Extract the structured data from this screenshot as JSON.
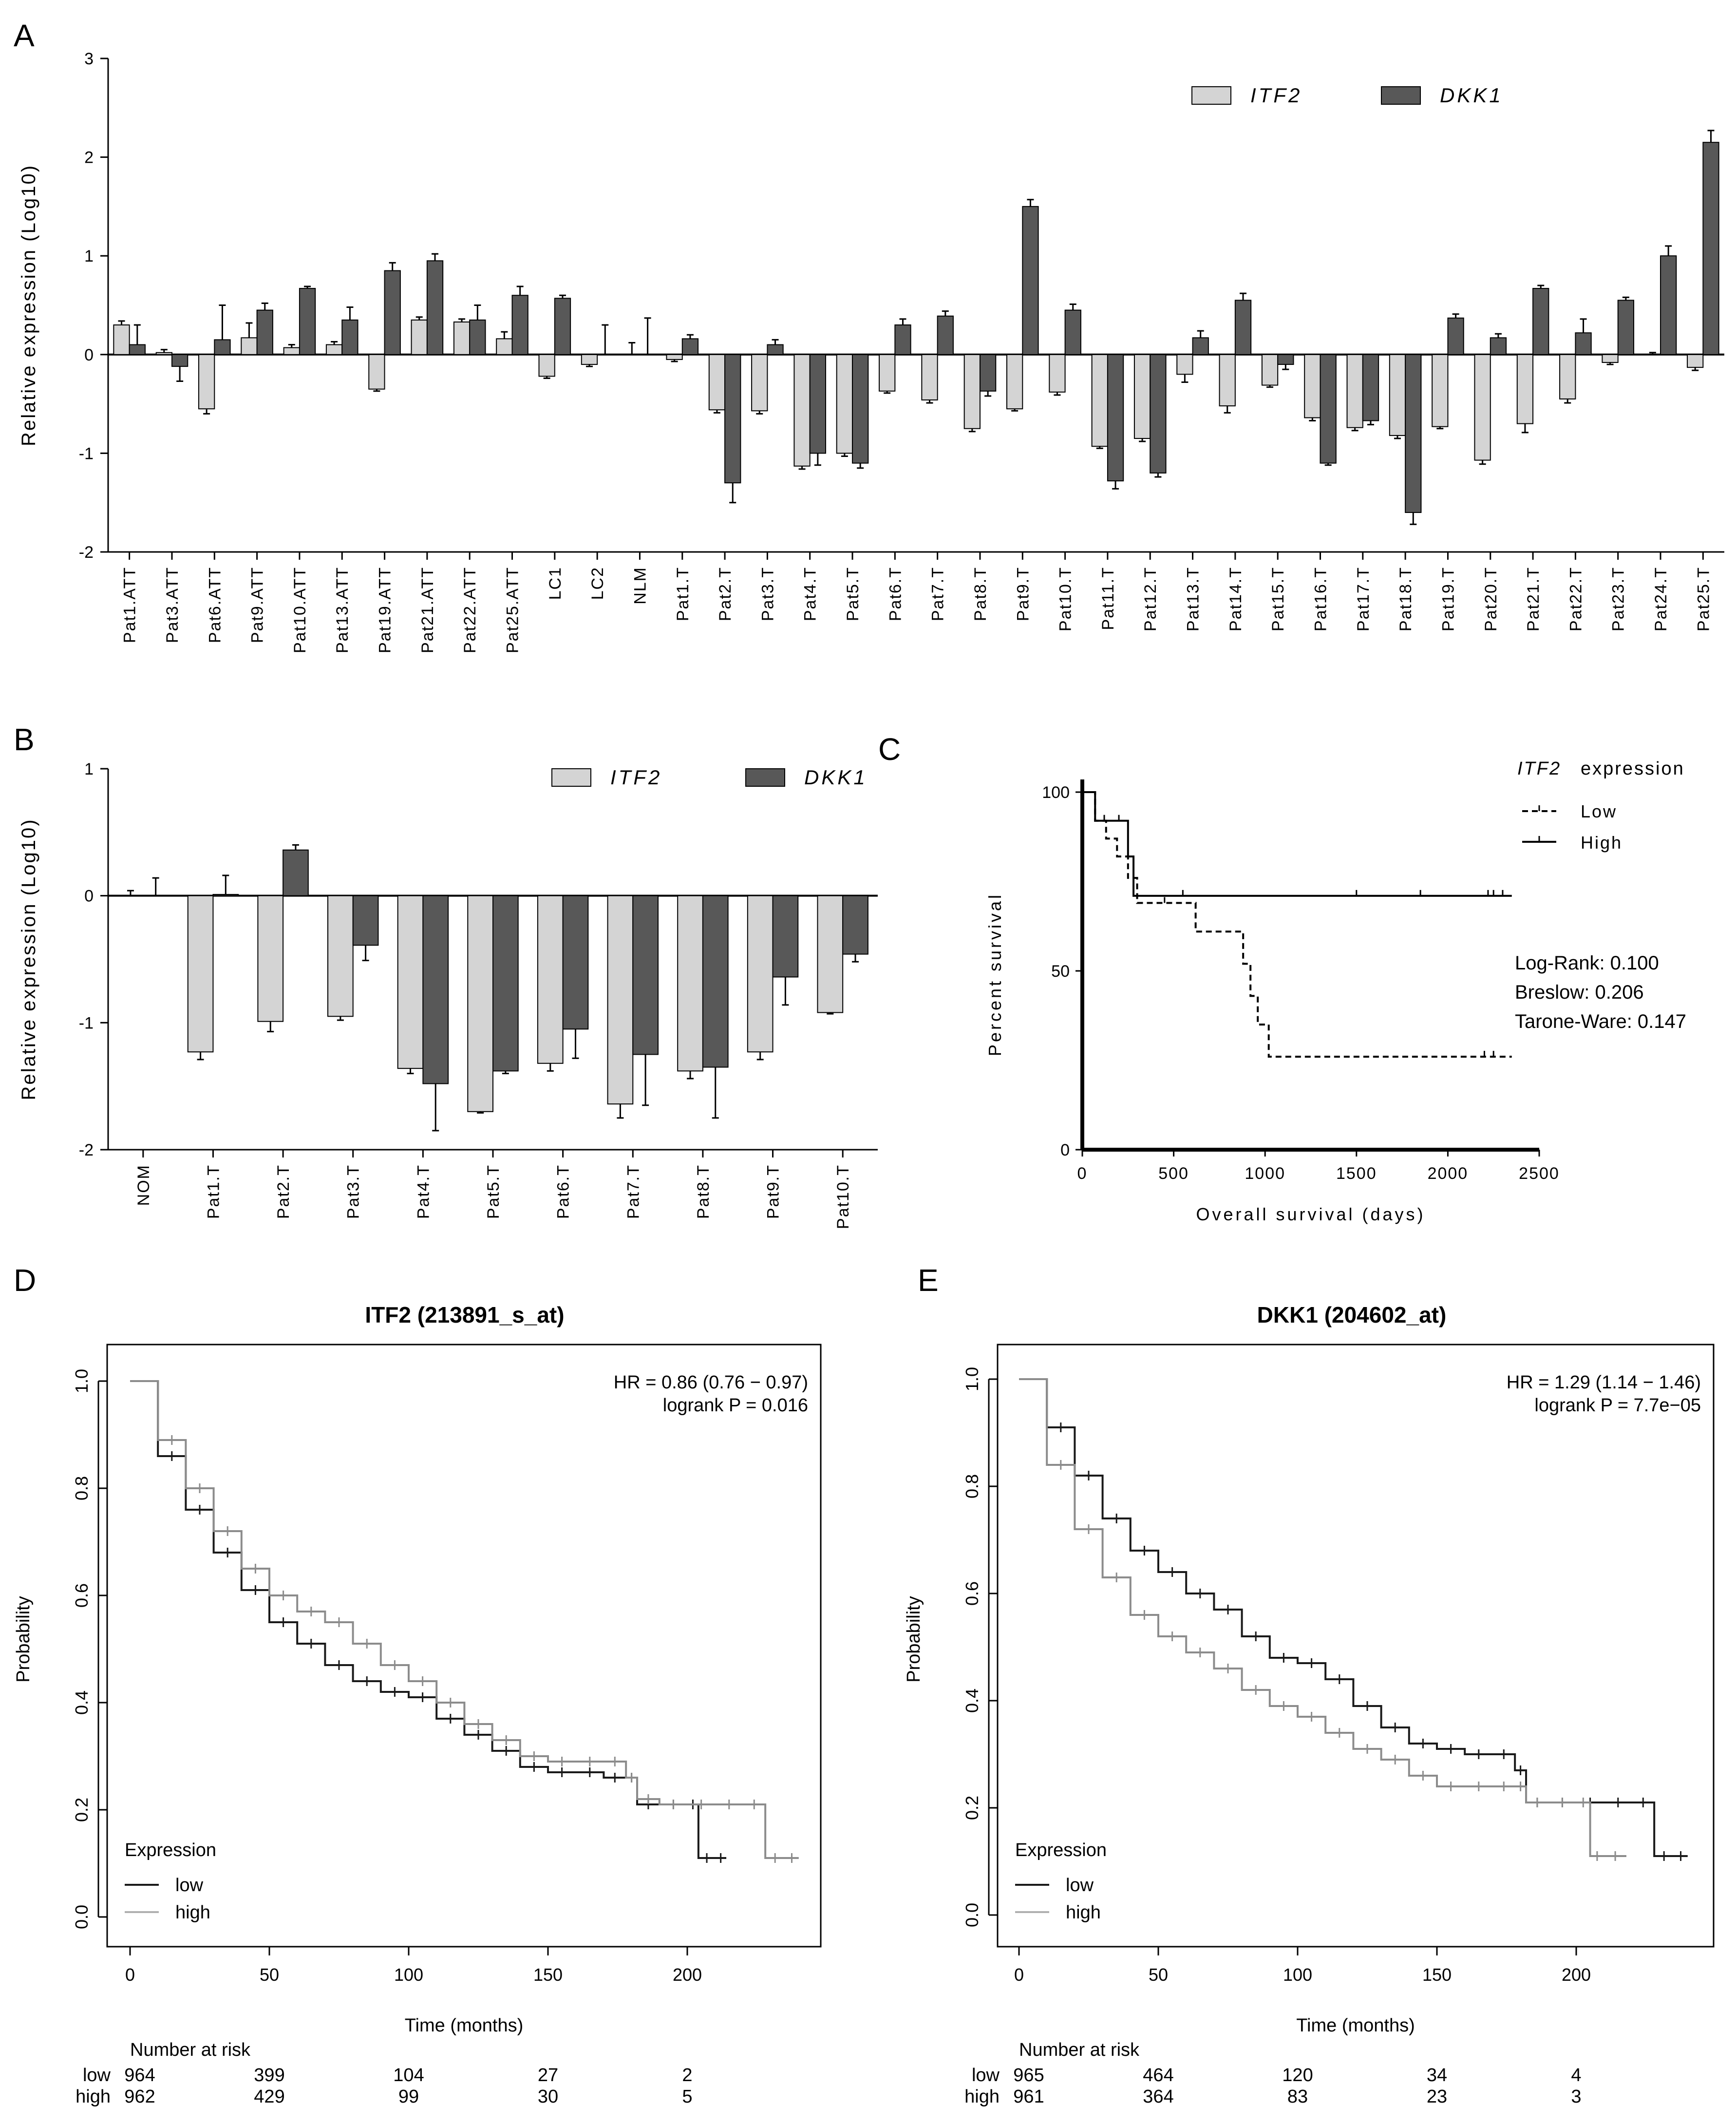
{
  "colors": {
    "itf2_bar": "#d4d4d4",
    "dkk1_bar": "#585858",
    "km_low": "#1a1a1a",
    "km_high": "#8c8c8c",
    "km_high_light": "#b0b0b0"
  },
  "panels": {
    "A": "A",
    "B": "B",
    "C": "C",
    "D": "D",
    "E": "E"
  },
  "chart_data": [
    {
      "id": "A",
      "type": "bar",
      "ylabel": "Relative expression (Log10)",
      "ylim": [
        -2,
        3
      ],
      "yticks": [
        "-2",
        "-1",
        "0",
        "1",
        "2",
        "3"
      ],
      "categories": [
        "Pat1.ATT",
        "Pat3.ATT",
        "Pat6.ATT",
        "Pat9.ATT",
        "Pat10.ATT",
        "Pat13.ATT",
        "Pat19.ATT",
        "Pat21.ATT",
        "Pat22.ATT",
        "Pat25.ATT",
        "LC1",
        "LC2",
        "NLM",
        "Pat1.T",
        "Pat2.T",
        "Pat3.T",
        "Pat4.T",
        "Pat5.T",
        "Pat6.T",
        "Pat7.T",
        "Pat8.T",
        "Pat9.T",
        "Pat10.T",
        "Pat11.T",
        "Pat12.T",
        "Pat13.T",
        "Pat14.T",
        "Pat15.T",
        "Pat16.T",
        "Pat17.T",
        "Pat18.T",
        "Pat19.T",
        "Pat20.T",
        "Pat21.T",
        "Pat22.T",
        "Pat23.T",
        "Pat24.T",
        "Pat25.T"
      ],
      "legend": [
        "ITF2",
        "DKK1"
      ],
      "series": [
        {
          "name": "ITF2",
          "values": [
            0.3,
            0.02,
            -0.55,
            0.17,
            0.07,
            0.1,
            -0.35,
            0.35,
            0.33,
            0.16,
            -0.22,
            -0.1,
            0.0,
            -0.05,
            -0.56,
            -0.57,
            -1.13,
            -1.0,
            -0.37,
            -0.46,
            -0.75,
            -0.55,
            -0.38,
            -0.93,
            -0.85,
            -0.2,
            -0.52,
            -0.31,
            -0.64,
            -0.74,
            -0.82,
            -0.73,
            -1.07,
            -0.7,
            -0.45,
            -0.08,
            0.0,
            -0.13
          ],
          "errors": [
            0.04,
            0.03,
            0.05,
            0.15,
            0.03,
            0.03,
            0.02,
            0.03,
            0.03,
            0.07,
            0.02,
            0.02,
            0.12,
            0.02,
            0.03,
            0.03,
            0.03,
            0.03,
            0.02,
            0.03,
            0.03,
            0.02,
            0.03,
            0.02,
            0.03,
            0.08,
            0.07,
            0.02,
            0.03,
            0.03,
            0.03,
            0.02,
            0.04,
            0.09,
            0.04,
            0.02,
            0.02,
            0.03
          ]
        },
        {
          "name": "DKK1",
          "values": [
            0.1,
            -0.12,
            0.15,
            0.45,
            0.67,
            0.35,
            0.85,
            0.95,
            0.35,
            0.6,
            0.57,
            0.0,
            0.0,
            0.16,
            -1.3,
            0.1,
            -1.0,
            -1.1,
            0.3,
            0.39,
            -0.37,
            1.5,
            0.45,
            -1.28,
            -1.2,
            0.17,
            0.55,
            -0.1,
            -1.1,
            -0.67,
            -1.6,
            0.37,
            0.17,
            0.67,
            0.22,
            0.55,
            1.0,
            2.15
          ],
          "errors": [
            0.2,
            0.15,
            0.35,
            0.07,
            0.02,
            0.13,
            0.08,
            0.07,
            0.15,
            0.09,
            0.03,
            0.3,
            0.37,
            0.04,
            0.2,
            0.05,
            0.12,
            0.05,
            0.06,
            0.05,
            0.05,
            0.07,
            0.06,
            0.08,
            0.04,
            0.07,
            0.07,
            0.05,
            0.02,
            0.04,
            0.12,
            0.04,
            0.04,
            0.03,
            0.14,
            0.03,
            0.1,
            0.12
          ]
        }
      ]
    },
    {
      "id": "B",
      "type": "bar",
      "ylabel": "Relative expression (Log10)",
      "ylim": [
        -2,
        1
      ],
      "yticks": [
        "-2",
        "-1",
        "0",
        "1"
      ],
      "categories": [
        "NOM",
        "Pat1.T",
        "Pat2.T",
        "Pat3.T",
        "Pat4.T",
        "Pat5.T",
        "Pat6.T",
        "Pat7.T",
        "Pat8.T",
        "Pat9.T",
        "Pat10.T"
      ],
      "legend": [
        "ITF2",
        "DKK1"
      ],
      "series": [
        {
          "name": "ITF2",
          "values": [
            0.0,
            -1.23,
            -0.99,
            -0.95,
            -1.36,
            -1.7,
            -1.32,
            -1.64,
            -1.38,
            -1.23,
            -0.92
          ],
          "errors": [
            0.04,
            0.06,
            0.08,
            0.03,
            0.04,
            0.01,
            0.06,
            0.11,
            0.06,
            0.06,
            0.01
          ]
        },
        {
          "name": "DKK1",
          "values": [
            0.0,
            0.01,
            0.36,
            -0.39,
            -1.48,
            -1.38,
            -1.05,
            -1.25,
            -1.35,
            -0.64,
            -0.46
          ],
          "errors": [
            0.14,
            0.15,
            0.04,
            0.12,
            0.37,
            0.02,
            0.23,
            0.4,
            0.4,
            0.22,
            0.06
          ]
        }
      ]
    },
    {
      "id": "C",
      "type": "line",
      "xlabel": "Overall survival (days)",
      "ylabel": "Percent survival",
      "xlim": [
        0,
        2500
      ],
      "ylim": [
        0,
        100
      ],
      "xticks": [
        "0",
        "500",
        "1000",
        "1500",
        "2000",
        "2500"
      ],
      "yticks": [
        "0",
        "50",
        "100"
      ],
      "legend_title_gene": "ITF2",
      "legend_title_rest": "expression",
      "legend": [
        "Low",
        "High"
      ],
      "stats": [
        "Log-Rank: 0.100",
        "Breslow: 0.206",
        "Tarone-Ware: 0.147"
      ],
      "series": [
        {
          "name": "Low",
          "x": [
            0,
            70,
            130,
            190,
            250,
            300,
            620,
            880,
            920,
            960,
            1020,
            1220,
            2350
          ],
          "y": [
            100,
            92,
            87,
            82,
            76,
            69,
            61,
            52,
            43,
            35,
            26,
            26,
            26
          ],
          "censor_x": [
            450,
            2200,
            2250
          ]
        },
        {
          "name": "High",
          "x": [
            0,
            70,
            250,
            280,
            2350
          ],
          "y": [
            100,
            92,
            82,
            71,
            71
          ],
          "censor_x": [
            120,
            200,
            550,
            1500,
            1850,
            2220,
            2250,
            2300
          ]
        }
      ]
    },
    {
      "id": "D",
      "type": "line",
      "title": "ITF2 (213891_s_at)",
      "xlabel": "Time (months)",
      "ylabel": "Probability",
      "xlim": [
        0,
        240
      ],
      "ylim": [
        0,
        1
      ],
      "xticks": [
        "0",
        "50",
        "100",
        "150",
        "200"
      ],
      "yticks": [
        "0.0",
        "0.2",
        "0.4",
        "0.6",
        "0.8",
        "1.0"
      ],
      "hr_text": "HR = 0.86 (0.76 − 0.97)",
      "p_text": "logrank P = 0.016",
      "legend_title": "Expression",
      "legend": [
        "low",
        "high"
      ],
      "risk_title": "Number at risk",
      "risk_rows": [
        {
          "label": "low",
          "values": [
            "964",
            "399",
            "104",
            "27",
            "2"
          ]
        },
        {
          "label": "high",
          "values": [
            "962",
            "429",
            "99",
            "30",
            "5"
          ]
        }
      ],
      "series": [
        {
          "name": "low",
          "x": [
            0,
            10,
            20,
            30,
            40,
            50,
            60,
            70,
            80,
            90,
            100,
            110,
            120,
            130,
            140,
            150,
            160,
            170,
            178,
            182,
            190,
            200,
            204,
            210,
            214
          ],
          "y": [
            1.0,
            0.86,
            0.76,
            0.68,
            0.61,
            0.55,
            0.51,
            0.47,
            0.44,
            0.42,
            0.41,
            0.37,
            0.34,
            0.31,
            0.28,
            0.27,
            0.27,
            0.26,
            0.26,
            0.21,
            0.21,
            0.21,
            0.11,
            0.11,
            0.11
          ]
        },
        {
          "name": "high",
          "x": [
            0,
            10,
            20,
            30,
            40,
            50,
            60,
            70,
            80,
            90,
            100,
            110,
            120,
            130,
            140,
            150,
            160,
            170,
            178,
            182,
            190,
            200,
            210,
            220,
            228,
            235,
            240
          ],
          "y": [
            1.0,
            0.89,
            0.8,
            0.72,
            0.65,
            0.6,
            0.57,
            0.55,
            0.51,
            0.47,
            0.44,
            0.4,
            0.36,
            0.33,
            0.3,
            0.29,
            0.29,
            0.29,
            0.26,
            0.22,
            0.21,
            0.21,
            0.21,
            0.21,
            0.11,
            0.11,
            0.11
          ]
        }
      ]
    },
    {
      "id": "E",
      "type": "line",
      "title": "DKK1 (204602_at)",
      "xlabel": "Time (months)",
      "ylabel": "Probability",
      "xlim": [
        0,
        240
      ],
      "ylim": [
        0,
        1
      ],
      "xticks": [
        "0",
        "50",
        "100",
        "150",
        "200"
      ],
      "yticks": [
        "0.0",
        "0.2",
        "0.4",
        "0.6",
        "0.8",
        "1.0"
      ],
      "hr_text": "HR = 1.29 (1.14 − 1.46)",
      "p_text": "logrank P = 7.7e−05",
      "legend_title": "Expression",
      "legend": [
        "low",
        "high"
      ],
      "risk_title": "Number at risk",
      "risk_rows": [
        {
          "label": "low",
          "values": [
            "965",
            "464",
            "120",
            "34",
            "4"
          ]
        },
        {
          "label": "high",
          "values": [
            "961",
            "364",
            "83",
            "23",
            "3"
          ]
        }
      ],
      "series": [
        {
          "name": "low",
          "x": [
            0,
            10,
            20,
            30,
            40,
            50,
            60,
            70,
            80,
            90,
            100,
            110,
            120,
            130,
            140,
            150,
            160,
            170,
            178,
            182,
            190,
            200,
            210,
            220,
            228,
            235,
            240
          ],
          "y": [
            1.0,
            0.91,
            0.82,
            0.74,
            0.68,
            0.64,
            0.6,
            0.57,
            0.52,
            0.48,
            0.47,
            0.44,
            0.39,
            0.35,
            0.32,
            0.31,
            0.3,
            0.3,
            0.27,
            0.21,
            0.21,
            0.21,
            0.21,
            0.21,
            0.11,
            0.11,
            0.11
          ]
        },
        {
          "name": "high",
          "x": [
            0,
            10,
            20,
            30,
            40,
            50,
            60,
            70,
            80,
            90,
            100,
            110,
            120,
            130,
            140,
            150,
            160,
            170,
            178,
            182,
            190,
            200,
            205,
            210,
            218
          ],
          "y": [
            1.0,
            0.84,
            0.72,
            0.63,
            0.56,
            0.52,
            0.49,
            0.46,
            0.42,
            0.39,
            0.37,
            0.34,
            0.31,
            0.29,
            0.26,
            0.24,
            0.24,
            0.24,
            0.24,
            0.21,
            0.21,
            0.21,
            0.11,
            0.11,
            0.11
          ]
        }
      ]
    }
  ]
}
